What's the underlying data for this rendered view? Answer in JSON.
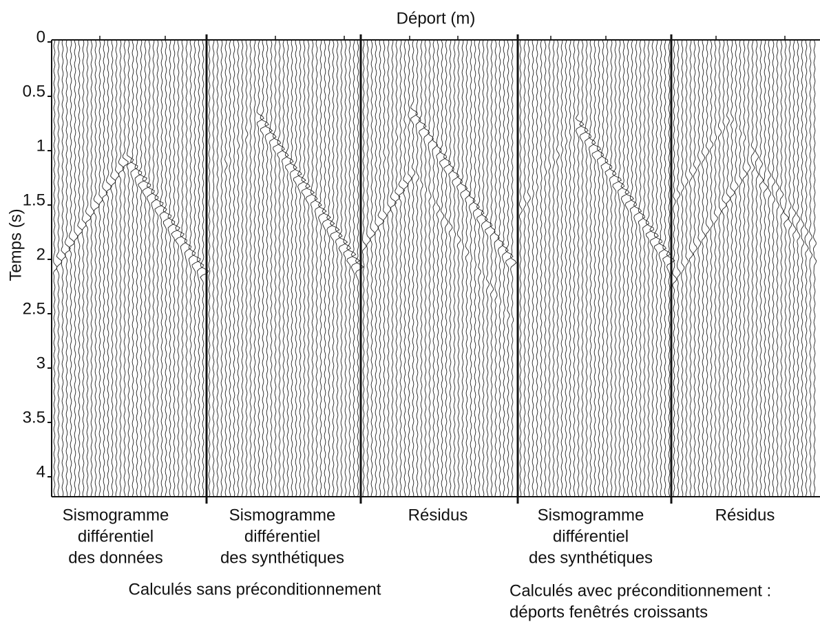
{
  "header": {
    "x_label": "Déport (m)",
    "y_label": "Temps (s)"
  },
  "axis": {
    "y_ticks": [
      "0",
      "0.5",
      "1",
      "1.5",
      "2",
      "2.5",
      "3",
      "3.5",
      "4"
    ]
  },
  "panels": [
    {
      "label_lines": [
        "Sismogramme",
        "différentiel",
        "des données"
      ]
    },
    {
      "label_lines": [
        "Sismogramme",
        "différentiel",
        "des synthétiques"
      ]
    },
    {
      "label_lines": [
        "Résidus"
      ]
    },
    {
      "label_lines": [
        "Sismogramme",
        "différentiel",
        "des synthétiques"
      ]
    },
    {
      "label_lines": [
        "Résidus"
      ]
    }
  ],
  "captions": [
    {
      "lines": [
        "Calculés sans préconditionnement"
      ]
    },
    {
      "lines": [
        "Calculés avec préconditionnement :",
        "déports fenêtrés croissants"
      ]
    }
  ]
}
